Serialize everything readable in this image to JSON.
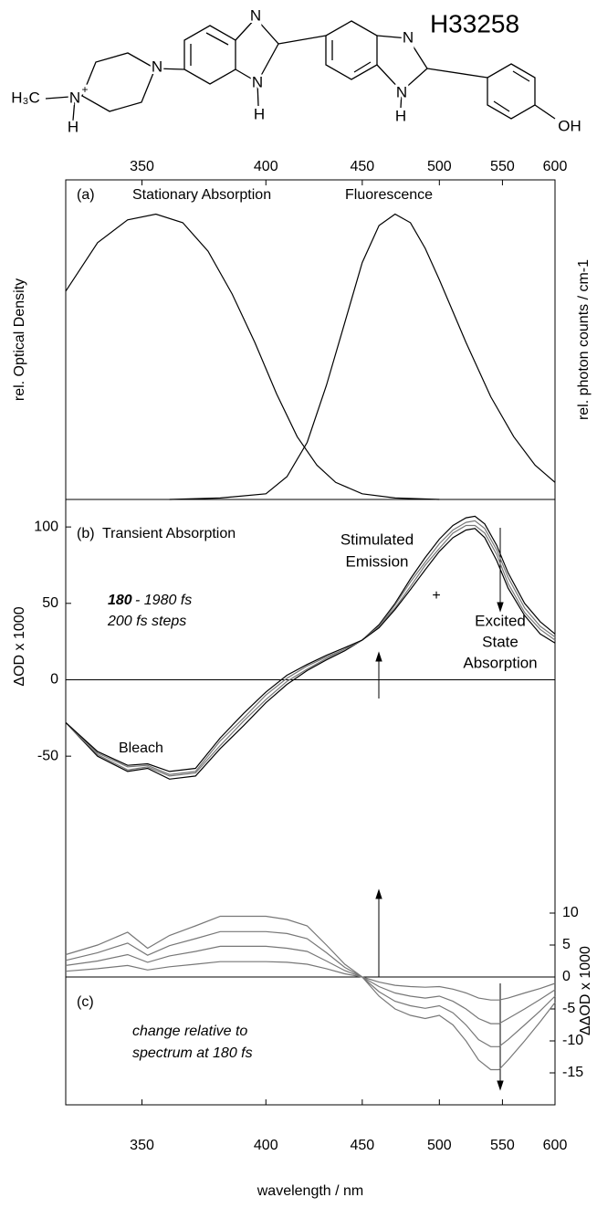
{
  "structure": {
    "name": "H33258",
    "atoms": [
      "H₃C",
      "N",
      "+",
      "H",
      "N",
      "N",
      "N",
      "H",
      "N",
      "N",
      "H",
      "OH"
    ]
  },
  "chart_data": [
    {
      "type": "line",
      "panel_label": "(a)",
      "x_scale": "reciprocal",
      "xlim": [
        325,
        600
      ],
      "ylim": [
        0,
        1.12
      ],
      "xticks": [
        350,
        400,
        450,
        500,
        550,
        600
      ],
      "xaxis_side": "top",
      "ylabel": "rel. Optical Density",
      "y2label": "rel. photon counts / cm-1",
      "ylabel_color": "#888888",
      "series": [
        {
          "name": "Stationary Absorption",
          "color": "#000000",
          "x": [
            325,
            335,
            345,
            355,
            365,
            375,
            385,
            395,
            405,
            415,
            425,
            435,
            450,
            470,
            500
          ],
          "values": [
            0.73,
            0.9,
            0.98,
            1.0,
            0.97,
            0.87,
            0.72,
            0.55,
            0.37,
            0.22,
            0.12,
            0.06,
            0.02,
            0.005,
            0
          ]
        },
        {
          "name": "Fluorescence",
          "color": "#000000",
          "x": [
            360,
            380,
            400,
            410,
            420,
            430,
            440,
            450,
            460,
            470,
            480,
            490,
            500,
            520,
            540,
            560,
            580,
            600
          ],
          "values": [
            0,
            0.005,
            0.02,
            0.08,
            0.2,
            0.4,
            0.62,
            0.83,
            0.96,
            1.0,
            0.97,
            0.88,
            0.77,
            0.55,
            0.36,
            0.22,
            0.12,
            0.06
          ]
        }
      ]
    },
    {
      "type": "line",
      "panel_label": "(b)",
      "title": "Transient Absorption",
      "x_scale": "reciprocal",
      "xlim": [
        325,
        600
      ],
      "ylim": [
        -75,
        118
      ],
      "yticks": [
        -50,
        0,
        50,
        100
      ],
      "yaxis_side": "left",
      "zero_line": true,
      "ylabel": "ΔOD  x 1000",
      "x": [
        325,
        335,
        345,
        352,
        360,
        370,
        380,
        390,
        400,
        410,
        420,
        430,
        440,
        450,
        460,
        470,
        480,
        490,
        500,
        510,
        520,
        527,
        535,
        545,
        555,
        570,
        585,
        600
      ],
      "series": [
        {
          "color": "#000000",
          "values": [
            -28,
            -50,
            -60,
            -58,
            -65,
            -63,
            -45,
            -30,
            -15,
            -3,
            6,
            13,
            19,
            26,
            36,
            50,
            66,
            80,
            92,
            101,
            106,
            107,
            102,
            88,
            70,
            50,
            38,
            30
          ]
        },
        {
          "color": "#777777",
          "values": [
            -28,
            -49,
            -59,
            -57,
            -63,
            -61,
            -43,
            -27,
            -13,
            -1,
            7,
            14,
            20,
            26,
            35,
            49,
            64,
            77,
            89,
            98,
            103,
            104,
            99,
            85,
            67,
            47,
            35,
            28
          ]
        },
        {
          "color": "#777777",
          "values": [
            -28,
            -48,
            -57,
            -56,
            -62,
            -60,
            -40,
            -25,
            -10,
            1,
            9,
            15,
            20,
            26,
            35,
            47,
            61,
            75,
            86,
            96,
            101,
            101,
            96,
            82,
            63,
            44,
            33,
            26
          ]
        },
        {
          "color": "#000000",
          "values": [
            -28,
            -47,
            -56,
            -55,
            -60,
            -58,
            -38,
            -22,
            -8,
            3,
            10,
            16,
            21,
            26,
            34,
            46,
            59,
            72,
            84,
            93,
            98,
            99,
            93,
            78,
            60,
            42,
            30,
            24
          ]
        }
      ],
      "annotations": [
        {
          "text": "Stimulated",
          "color": "#888888"
        },
        {
          "text": "Emission",
          "color": "#888888"
        },
        {
          "text": "+",
          "color": "#000000"
        },
        {
          "text": "Excited",
          "color": "#888888"
        },
        {
          "text": "State",
          "color": "#888888"
        },
        {
          "text": "Absorption",
          "color": "#888888"
        },
        {
          "text": "180",
          "color": "#000000",
          "style": "bold-italic"
        },
        {
          "text": "- 1980 fs",
          "color": "#000000",
          "style": "italic"
        },
        {
          "text": "200 fs  steps",
          "color": "#000000",
          "style": "italic"
        },
        {
          "text": "Bleach",
          "color": "#888888"
        }
      ]
    },
    {
      "type": "line",
      "panel_label": "(c)",
      "x_scale": "reciprocal",
      "xlim": [
        325,
        600
      ],
      "ylim": [
        -20,
        15
      ],
      "xticks": [
        350,
        400,
        450,
        500,
        550,
        600
      ],
      "xaxis_side": "bottom",
      "xlabel": "wavelength / nm",
      "yticks": [
        -15,
        -10,
        -5,
        0,
        5,
        10
      ],
      "yaxis_side": "right",
      "zero_line": true,
      "ylabel": "ΔΔOD  x 1000",
      "x": [
        325,
        335,
        345,
        352,
        360,
        370,
        380,
        390,
        400,
        410,
        420,
        430,
        440,
        450,
        460,
        470,
        480,
        490,
        500,
        510,
        520,
        530,
        540,
        547,
        555,
        570,
        585,
        600
      ],
      "series": [
        {
          "color": "#777777",
          "values": [
            0.9,
            1.3,
            1.8,
            1.1,
            1.6,
            2,
            2.4,
            2.4,
            2.4,
            2.3,
            2,
            1.3,
            0.5,
            0,
            -0.8,
            -1.3,
            -1.5,
            -1.6,
            -1.5,
            -1.9,
            -2.5,
            -3.3,
            -3.6,
            -3.6,
            -3.3,
            -2.5,
            -1.8,
            -1
          ]
        },
        {
          "color": "#777777",
          "values": [
            1.8,
            2.5,
            3.5,
            2.3,
            3.3,
            4,
            4.8,
            4.8,
            4.8,
            4.5,
            4,
            2.5,
            1,
            0,
            -1.5,
            -2.5,
            -3,
            -3.3,
            -3,
            -3.8,
            -5,
            -6.5,
            -7.3,
            -7.3,
            -6.5,
            -5,
            -3.5,
            -2
          ]
        },
        {
          "color": "#777777",
          "values": [
            2.6,
            3.8,
            5.3,
            3.4,
            4.9,
            6,
            7.1,
            7.1,
            7.1,
            6.8,
            6,
            3.8,
            1.5,
            0,
            -2.3,
            -3.8,
            -4.5,
            -4.9,
            -4.5,
            -5.6,
            -7.5,
            -9.8,
            -10.9,
            -10.9,
            -9.8,
            -7.5,
            -5.3,
            -3
          ]
        },
        {
          "color": "#777777",
          "values": [
            3.5,
            5,
            7,
            4.5,
            6.5,
            8,
            9.5,
            9.5,
            9.5,
            9,
            8,
            5,
            2,
            0,
            -3,
            -5,
            -6,
            -6.5,
            -6,
            -7.5,
            -10,
            -13,
            -14.5,
            -14.5,
            -13,
            -10,
            -7,
            -4
          ]
        }
      ],
      "annotations": [
        {
          "text": "change relative to",
          "color": "#000000",
          "style": "italic"
        },
        {
          "text": "spectrum at 180 fs",
          "color": "#000000",
          "style": "italic"
        }
      ]
    }
  ]
}
